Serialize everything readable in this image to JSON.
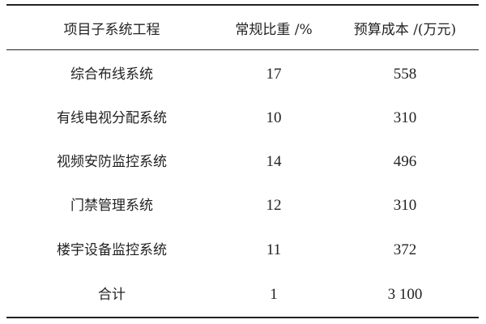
{
  "table": {
    "headers": [
      "项目子系统工程",
      "常规比重 /%",
      "预算成本 /(万元)"
    ],
    "rows": [
      [
        "综合布线系统",
        "17",
        "558"
      ],
      [
        "有线电视分配系统",
        "10",
        "310"
      ],
      [
        "视频安防监控系统",
        "14",
        "496"
      ],
      [
        "门禁管理系统",
        "12",
        "310"
      ],
      [
        "楼宇设备监控系统",
        "11",
        "372"
      ],
      [
        "合计",
        "1",
        "3 100"
      ]
    ]
  }
}
